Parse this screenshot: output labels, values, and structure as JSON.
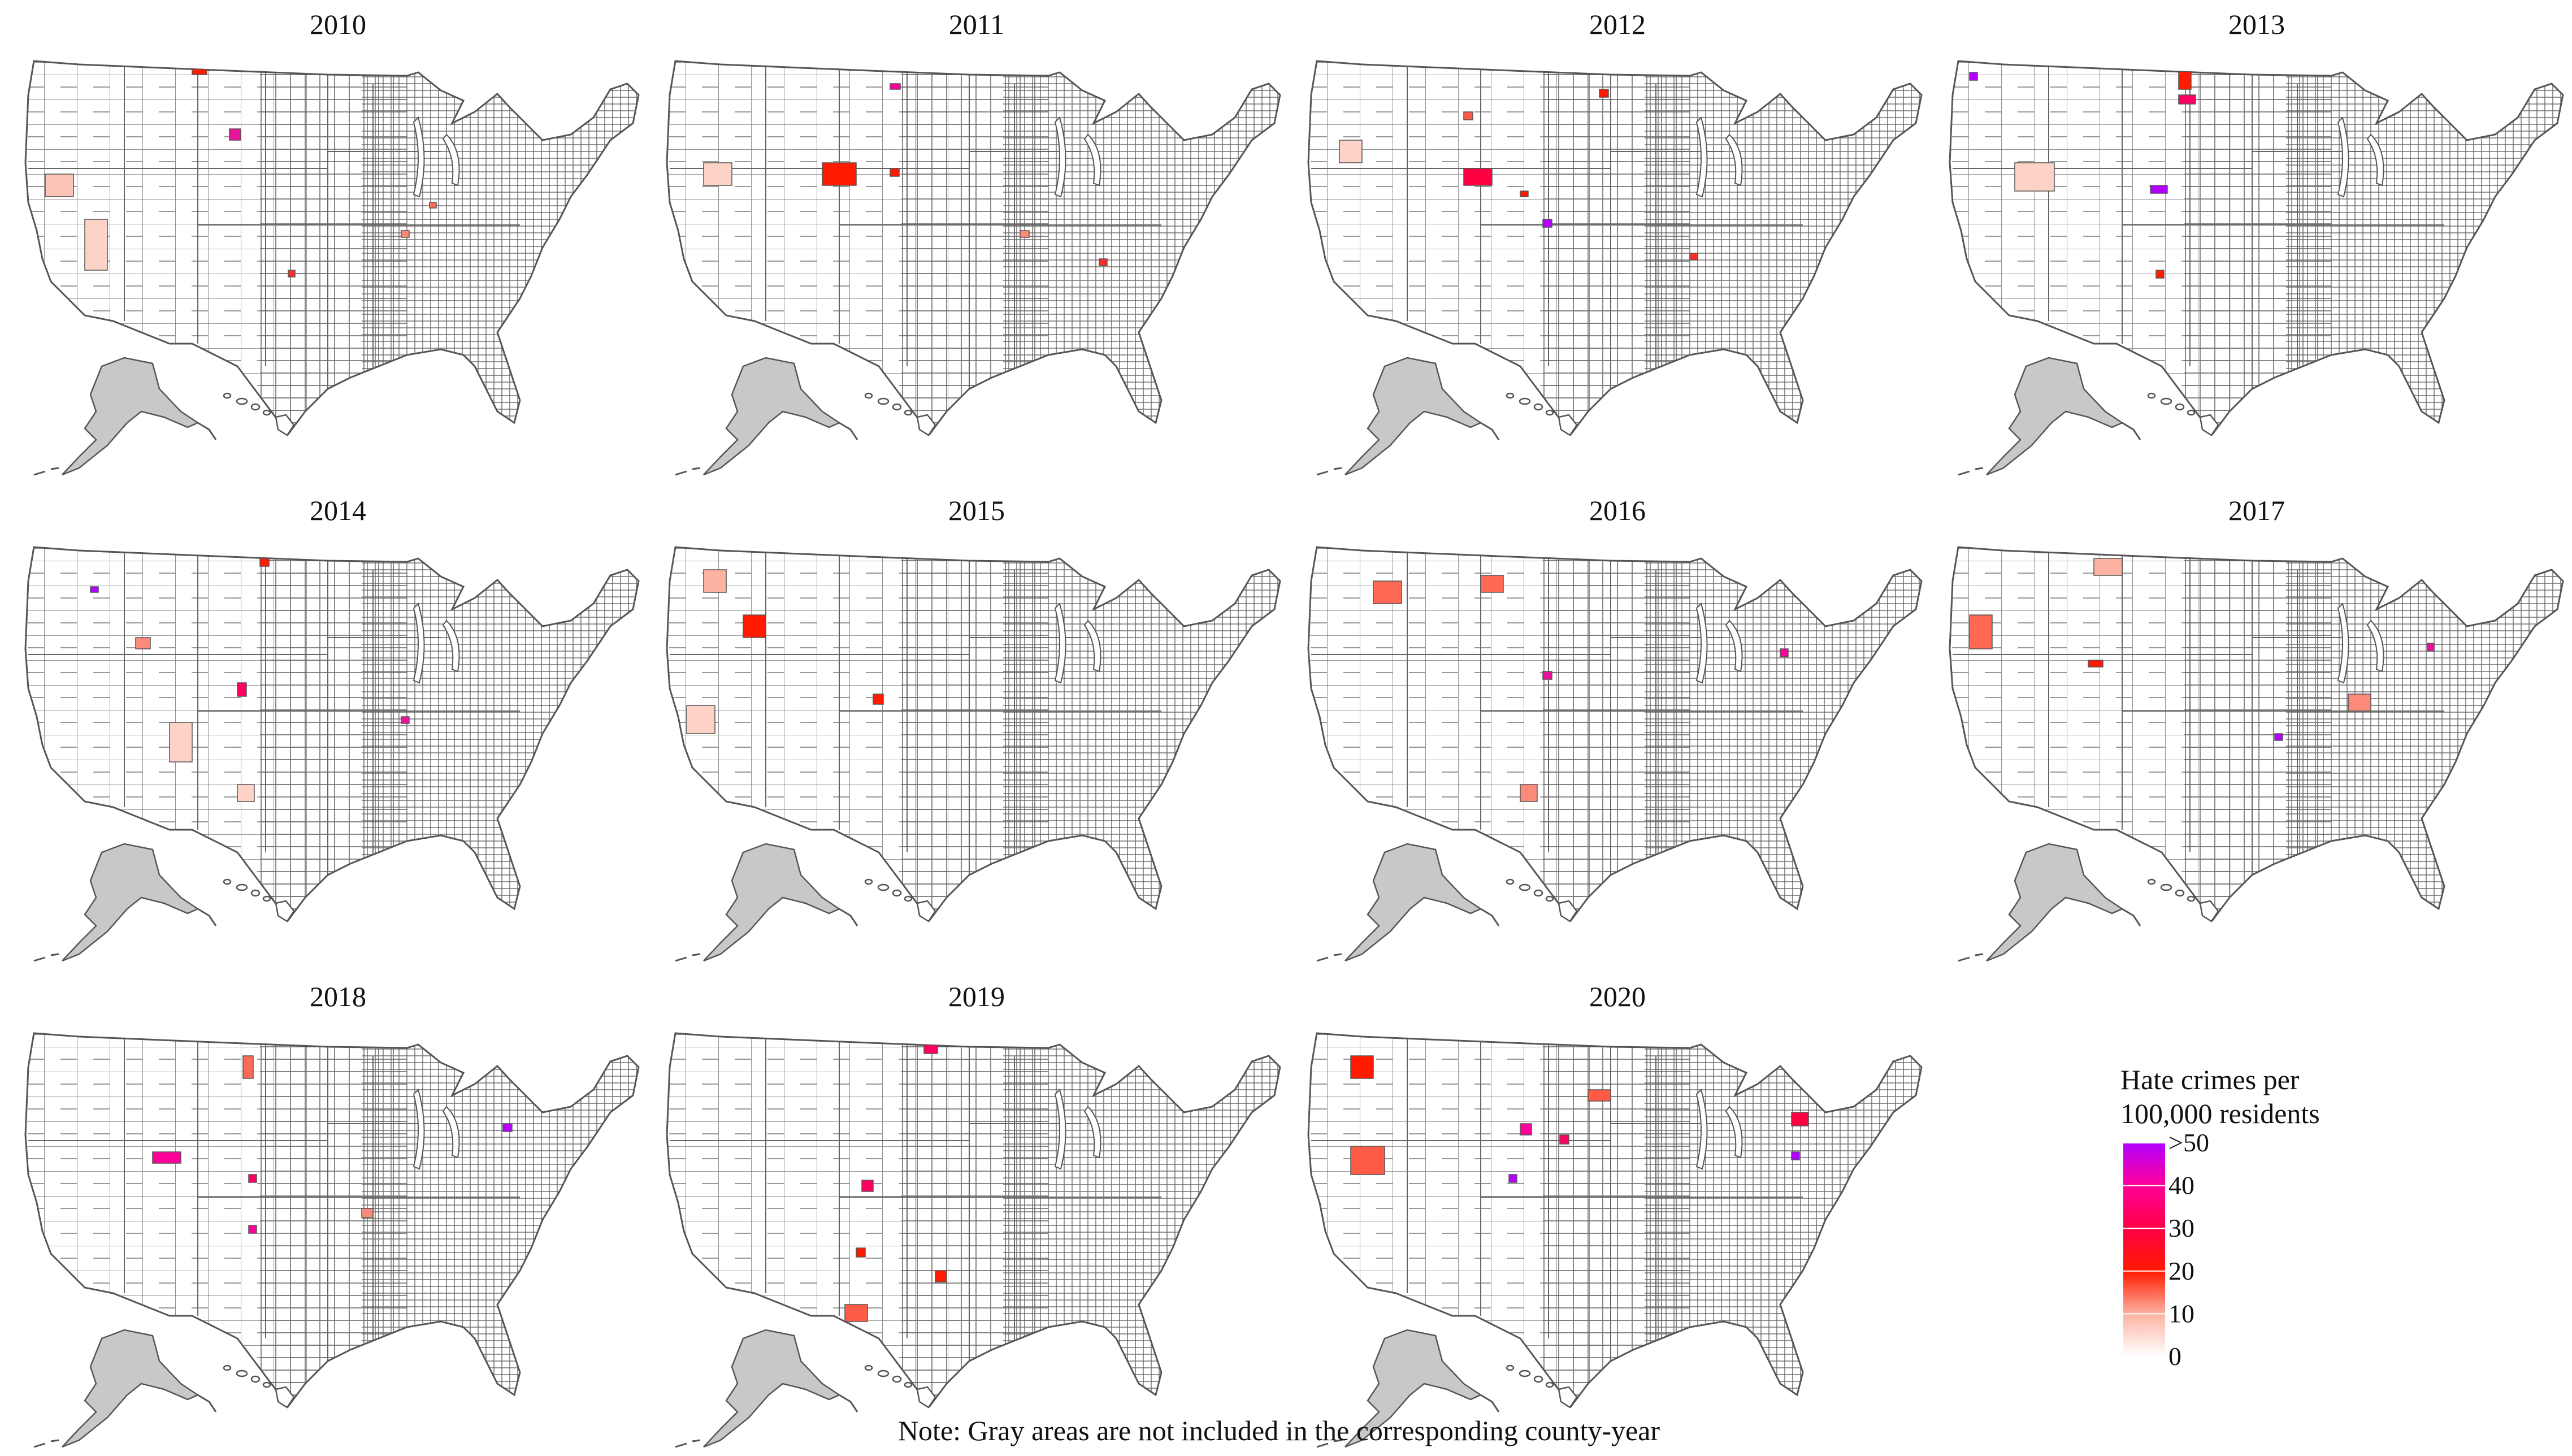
{
  "panels": [
    {
      "year": "2010"
    },
    {
      "year": "2011"
    },
    {
      "year": "2012"
    },
    {
      "year": "2013"
    },
    {
      "year": "2014"
    },
    {
      "year": "2015"
    },
    {
      "year": "2016"
    },
    {
      "year": "2017"
    },
    {
      "year": "2018"
    },
    {
      "year": "2019"
    },
    {
      "year": "2020"
    }
  ],
  "legend": {
    "title_line1": "Hate crimes per",
    "title_line2": "100,000 residents",
    "ticks": [
      {
        "label": ">50",
        "value": 50
      },
      {
        "label": "40",
        "value": 40
      },
      {
        "label": "30",
        "value": 30
      },
      {
        "label": "20",
        "value": 20
      },
      {
        "label": "10",
        "value": 10
      },
      {
        "label": "0",
        "value": 0
      }
    ],
    "scale_max": 50,
    "colors": [
      {
        "value": 0,
        "color": "#ffffff"
      },
      {
        "value": 10,
        "color": "#fcb3a1"
      },
      {
        "value": 20,
        "color": "#ff1a00"
      },
      {
        "value": 30,
        "color": "#ff0044"
      },
      {
        "value": 40,
        "color": "#ff0099"
      },
      {
        "value": 50,
        "color": "#b300ff"
      }
    ]
  },
  "colors": {
    "not_included": "#c8c8c8",
    "county_border": "#555555",
    "land": "#ffffff"
  },
  "note": "Note: Gray areas are not included in the corresponding county-year"
}
